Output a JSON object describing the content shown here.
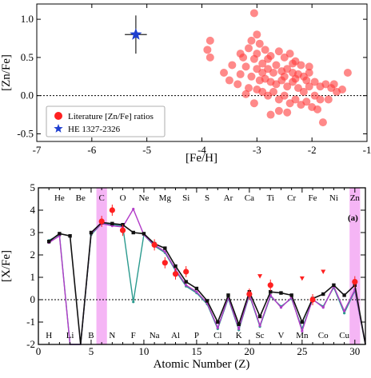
{
  "chart_data": [
    {
      "type": "scatter",
      "xlabel": "[Fe/H]",
      "ylabel": "[Zn/Fe]",
      "xlim": [
        -7,
        -1
      ],
      "ylim": [
        -0.6,
        1.2
      ],
      "xticks": [
        "-7",
        "-6",
        "-5",
        "-4",
        "-3",
        "-2",
        "-1"
      ],
      "yticks": [
        "-0.5",
        "0.0",
        "0.5",
        "1.0"
      ],
      "reference_line_y": 0.0,
      "legend": "bottom-left",
      "series": [
        {
          "name": "Literature [Zn/Fe] ratios",
          "color": "#ff3b3b",
          "marker": "circle",
          "points": [
            [
              -3.85,
              0.72
            ],
            [
              -3.9,
              0.6
            ],
            [
              -3.85,
              0.5
            ],
            [
              -3.3,
              0.55
            ],
            [
              -3.05,
              1.08
            ],
            [
              -3.0,
              0.8
            ],
            [
              -3.1,
              0.72
            ],
            [
              -2.95,
              0.68
            ],
            [
              -3.15,
              0.62
            ],
            [
              -2.85,
              0.6
            ],
            [
              -3.25,
              0.5
            ],
            [
              -3.05,
              0.48
            ],
            [
              -2.75,
              0.52
            ],
            [
              -2.6,
              0.58
            ],
            [
              -2.5,
              0.5
            ],
            [
              -2.4,
              0.55
            ],
            [
              -2.3,
              0.45
            ],
            [
              -2.2,
              0.4
            ],
            [
              -3.2,
              0.38
            ],
            [
              -3.0,
              0.35
            ],
            [
              -2.9,
              0.42
            ],
            [
              -2.8,
              0.35
            ],
            [
              -2.7,
              0.3
            ],
            [
              -2.65,
              0.4
            ],
            [
              -2.55,
              0.32
            ],
            [
              -2.45,
              0.35
            ],
            [
              -2.35,
              0.3
            ],
            [
              -2.25,
              0.28
            ],
            [
              -2.15,
              0.25
            ],
            [
              -2.05,
              0.3
            ],
            [
              -1.95,
              0.18
            ],
            [
              -1.85,
              0.12
            ],
            [
              -1.75,
              0.15
            ],
            [
              -1.65,
              0.1
            ],
            [
              -1.55,
              0.05
            ],
            [
              -1.45,
              0.08
            ],
            [
              -1.35,
              0.3
            ],
            [
              -3.3,
              0.28
            ],
            [
              -3.1,
              0.25
            ],
            [
              -2.95,
              0.2
            ],
            [
              -2.85,
              0.22
            ],
            [
              -2.75,
              0.18
            ],
            [
              -2.65,
              0.15
            ],
            [
              -2.55,
              0.2
            ],
            [
              -2.45,
              0.12
            ],
            [
              -2.35,
              0.18
            ],
            [
              -2.25,
              0.1
            ],
            [
              -2.15,
              0.05
            ],
            [
              -2.05,
              0.12
            ],
            [
              -1.95,
              0.0
            ],
            [
              -1.85,
              -0.05
            ],
            [
              -3.35,
              0.15
            ],
            [
              -3.15,
              0.1
            ],
            [
              -3.0,
              0.08
            ],
            [
              -2.9,
              0.05
            ],
            [
              -2.8,
              0.0
            ],
            [
              -2.7,
              0.05
            ],
            [
              -2.6,
              -0.05
            ],
            [
              -2.5,
              0.0
            ],
            [
              -2.4,
              -0.1
            ],
            [
              -2.3,
              -0.05
            ],
            [
              -2.2,
              -0.12
            ],
            [
              -2.1,
              -0.08
            ],
            [
              -2.0,
              -0.15
            ],
            [
              -1.9,
              -0.18
            ],
            [
              -2.6,
              -0.2
            ],
            [
              -3.05,
              -0.1
            ],
            [
              -2.75,
              -0.25
            ],
            [
              -2.45,
              -0.22
            ],
            [
              -1.8,
              -0.35
            ],
            [
              -3.6,
              0.3
            ],
            [
              -3.45,
              0.4
            ],
            [
              -3.5,
              0.2
            ],
            [
              -2.35,
              0.42
            ],
            [
              -2.05,
              0.38
            ],
            [
              -1.6,
              0.15
            ],
            [
              -2.8,
              0.48
            ],
            [
              -3.2,
              0.02
            ],
            [
              -2.5,
              0.25
            ],
            [
              -2.3,
              0.22
            ],
            [
              -1.7,
              -0.05
            ],
            [
              -2.1,
              0.2
            ],
            [
              -2.9,
              0.3
            ],
            [
              -3.0,
              0.55
            ]
          ]
        },
        {
          "name": "HE 1327-2326",
          "color": "#1f3fd0",
          "marker": "star",
          "points": [
            [
              -5.2,
              0.8
            ]
          ],
          "x_error": 0.2,
          "y_error": 0.25
        }
      ]
    },
    {
      "type": "line",
      "xlabel": "Atomic Number (Z)",
      "ylabel": "[X/Fe]",
      "xlim": [
        0,
        31
      ],
      "ylim": [
        -2,
        5
      ],
      "xticks": [
        "0",
        "5",
        "10",
        "15",
        "20",
        "25",
        "30"
      ],
      "yticks": [
        "-2",
        "-1",
        "0",
        "1",
        "2",
        "3",
        "4",
        "5"
      ],
      "reference_line_y": 0.0,
      "panel_label": "(a)",
      "highlight_bands": [
        {
          "label": "C",
          "x_from": 5.5,
          "x_to": 6.5,
          "color": "#f29cf2"
        },
        {
          "label": "Zn",
          "x_from": 29.5,
          "x_to": 30.5,
          "color": "#f29cf2"
        }
      ],
      "element_labels_top": [
        {
          "z": 2,
          "label": "He"
        },
        {
          "z": 4,
          "label": "Be"
        },
        {
          "z": 6,
          "label": "C"
        },
        {
          "z": 8,
          "label": "O"
        },
        {
          "z": 10,
          "label": "Ne"
        },
        {
          "z": 12,
          "label": "Mg"
        },
        {
          "z": 14,
          "label": "Si"
        },
        {
          "z": 16,
          "label": "S"
        },
        {
          "z": 18,
          "label": "Ar"
        },
        {
          "z": 20,
          "label": "Ca"
        },
        {
          "z": 22,
          "label": "Ti"
        },
        {
          "z": 24,
          "label": "Cr"
        },
        {
          "z": 26,
          "label": "Fe"
        },
        {
          "z": 28,
          "label": "Ni"
        },
        {
          "z": 30,
          "label": "Zn"
        }
      ],
      "element_labels_bottom": [
        {
          "z": 1,
          "label": "H"
        },
        {
          "z": 3,
          "label": "Li"
        },
        {
          "z": 5,
          "label": "B"
        },
        {
          "z": 7,
          "label": "N"
        },
        {
          "z": 9,
          "label": "F"
        },
        {
          "z": 11,
          "label": "Na"
        },
        {
          "z": 13,
          "label": "Al"
        },
        {
          "z": 15,
          "label": "P"
        },
        {
          "z": 17,
          "label": "Cl"
        },
        {
          "z": 19,
          "label": "K"
        },
        {
          "z": 21,
          "label": "Sc"
        },
        {
          "z": 23,
          "label": "V"
        },
        {
          "z": 25,
          "label": "Mn"
        },
        {
          "z": 27,
          "label": "Co"
        },
        {
          "z": 29,
          "label": "Cu"
        }
      ],
      "series": [
        {
          "color": "#111111",
          "z": [
            1,
            2,
            3,
            4,
            5,
            6,
            7,
            8,
            9,
            10,
            11,
            12,
            13,
            14,
            15,
            16,
            17,
            18,
            19,
            20,
            21,
            22,
            23,
            24,
            25,
            26,
            27,
            28,
            29,
            30,
            31
          ],
          "values": [
            2.6,
            2.95,
            2.85,
            -2.4,
            3.0,
            3.45,
            3.4,
            3.35,
            3.0,
            2.95,
            2.5,
            2.3,
            1.5,
            0.8,
            0.5,
            -0.05,
            -1.0,
            0.2,
            -1.1,
            0.35,
            -0.75,
            0.35,
            0.3,
            0.2,
            -1.0,
            0.05,
            0.25,
            0.65,
            0.2,
            0.65,
            -2.6
          ]
        },
        {
          "color": "#2a9a8e",
          "z": [
            1,
            2,
            3,
            4,
            5,
            6,
            7,
            8,
            9,
            10,
            11,
            12,
            13,
            14,
            15,
            16,
            17,
            18,
            19,
            20,
            21,
            22,
            23,
            24,
            25,
            26,
            27,
            28,
            29,
            30,
            31
          ],
          "values": [
            2.65,
            2.9,
            -2.4,
            -2.4,
            2.9,
            3.4,
            3.35,
            3.3,
            -0.1,
            2.9,
            2.4,
            2.1,
            1.3,
            0.6,
            0.3,
            -0.2,
            -1.3,
            0.05,
            -1.35,
            0.2,
            -1.2,
            0.15,
            -0.3,
            0.05,
            -1.3,
            0.0,
            -0.3,
            0.55,
            -0.6,
            0.4,
            -2.6
          ]
        },
        {
          "color": "#b23cc8",
          "z": [
            1,
            2,
            3,
            4,
            5,
            6,
            7,
            8,
            9,
            10,
            11,
            12,
            13,
            14,
            15,
            16,
            17,
            18,
            19,
            20,
            21,
            22,
            23,
            24,
            25,
            26,
            27,
            28,
            29,
            30,
            31
          ],
          "values": [
            2.55,
            2.85,
            -2.4,
            -2.4,
            2.95,
            3.4,
            3.3,
            3.25,
            4.05,
            2.9,
            2.45,
            2.15,
            1.35,
            0.65,
            0.35,
            -0.15,
            -1.25,
            0.1,
            -1.3,
            0.25,
            -1.15,
            0.2,
            -0.35,
            0.1,
            -1.4,
            0.02,
            -0.35,
            0.6,
            -0.5,
            0.45,
            -2.6
          ]
        }
      ],
      "observed_points": {
        "color": "#ff2020",
        "detections": [
          {
            "z": 6,
            "value": 3.5
          },
          {
            "z": 7,
            "value": 4.0
          },
          {
            "z": 8,
            "value": 3.1
          },
          {
            "z": 11,
            "value": 2.45
          },
          {
            "z": 12,
            "value": 1.65
          },
          {
            "z": 13,
            "value": 1.15
          },
          {
            "z": 14,
            "value": 1.25
          },
          {
            "z": 20,
            "value": 0.25
          },
          {
            "z": 22,
            "value": 0.65
          },
          {
            "z": 26,
            "value": 0.0
          },
          {
            "z": 30,
            "value": 0.8
          }
        ],
        "upper_limits": [
          {
            "z": 21,
            "value": 1.05
          },
          {
            "z": 25,
            "value": 0.95
          },
          {
            "z": 27,
            "value": 1.25
          }
        ]
      }
    }
  ],
  "legend": {
    "items": [
      {
        "label": "Literature [Zn/Fe] ratios",
        "color": "#ff2020",
        "marker": "circle"
      },
      {
        "label": "HE 1327-2326",
        "color": "#1f3fd0",
        "marker": "star"
      }
    ]
  }
}
